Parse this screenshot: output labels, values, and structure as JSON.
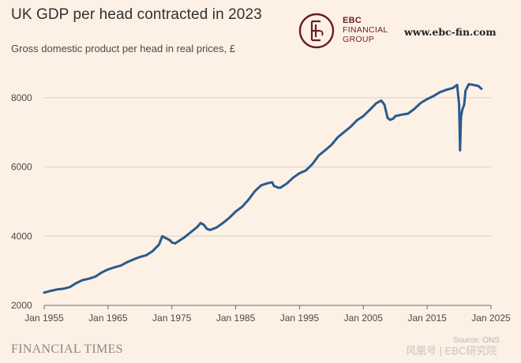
{
  "header": {
    "title": "UK GDP per head contracted in 2023",
    "subtitle": "Gross domestic product per head in real prices, £"
  },
  "logo": {
    "lines": [
      "EBC",
      "FINANCIAL",
      "GROUP"
    ],
    "website": "www.ebc-fin.com",
    "color": "#6b1e22"
  },
  "footer": {
    "brand": "FINANCIAL TIMES",
    "source_fragment": "Source: ONS",
    "watermark": "风凰号 | EBC研究院"
  },
  "colors": {
    "background": "#fdf1e6",
    "line": "#2a5b8c",
    "grid": "#d9d0c7",
    "axis_text": "#4d4845"
  },
  "chart_data": {
    "type": "line",
    "title": "UK GDP per head contracted in 2023",
    "subtitle": "Gross domestic product per head in real prices, £",
    "xlabel": "",
    "ylabel": "",
    "xlim": [
      1955,
      2025
    ],
    "ylim": [
      2000,
      9000
    ],
    "x_ticks": [
      1955,
      1965,
      1975,
      1985,
      1995,
      2005,
      2015,
      2025
    ],
    "x_tick_labels": [
      "Jan 1955",
      "Jan 1965",
      "Jan 1975",
      "Jan 1985",
      "Jan 1995",
      "Jan 2005",
      "Jan 2015",
      "Jan 2025"
    ],
    "y_ticks": [
      2000,
      4000,
      6000,
      8000
    ],
    "y_tick_labels": [
      "2000",
      "4000",
      "6000",
      "8000"
    ],
    "grid": true,
    "series": [
      {
        "x": [
          1955,
          1956,
          1957,
          1958,
          1959,
          1960,
          1961,
          1962,
          1963,
          1964,
          1965,
          1966,
          1967,
          1968,
          1969,
          1970,
          1971,
          1972,
          1973,
          1973.5,
          1974,
          1974.7,
          1975,
          1975.5,
          1976,
          1977,
          1978,
          1979,
          1979.5,
          1980,
          1980.5,
          1981,
          1982,
          1983,
          1984,
          1985,
          1986,
          1987,
          1988,
          1989,
          1990,
          1990.7,
          1991,
          1991.7,
          1992,
          1993,
          1994,
          1995,
          1996,
          1997,
          1998,
          1999,
          2000,
          2001,
          2002,
          2003,
          2004,
          2005,
          2006,
          2007,
          2007.8,
          2008.3,
          2008.8,
          2009.2,
          2009.7,
          2010,
          2011,
          2012,
          2013,
          2014,
          2015,
          2016,
          2017,
          2018,
          2019,
          2019.7,
          2020,
          2020.15,
          2020.3,
          2020.5,
          2020.8,
          2021,
          2021.5,
          2022,
          2023,
          2023.5
        ],
        "y": [
          2370,
          2420,
          2460,
          2480,
          2530,
          2640,
          2730,
          2770,
          2830,
          2950,
          3040,
          3100,
          3150,
          3250,
          3330,
          3400,
          3450,
          3570,
          3760,
          4000,
          3950,
          3880,
          3820,
          3790,
          3850,
          3970,
          4120,
          4270,
          4380,
          4330,
          4210,
          4180,
          4250,
          4380,
          4530,
          4710,
          4850,
          5050,
          5300,
          5470,
          5530,
          5560,
          5450,
          5400,
          5400,
          5520,
          5690,
          5820,
          5900,
          6080,
          6330,
          6480,
          6640,
          6860,
          7010,
          7160,
          7350,
          7470,
          7650,
          7840,
          7920,
          7800,
          7420,
          7360,
          7400,
          7470,
          7510,
          7540,
          7680,
          7850,
          7960,
          8050,
          8160,
          8230,
          8280,
          8370,
          7800,
          6480,
          7450,
          7650,
          7800,
          8200,
          8390,
          8380,
          8340,
          8260
        ]
      }
    ]
  }
}
